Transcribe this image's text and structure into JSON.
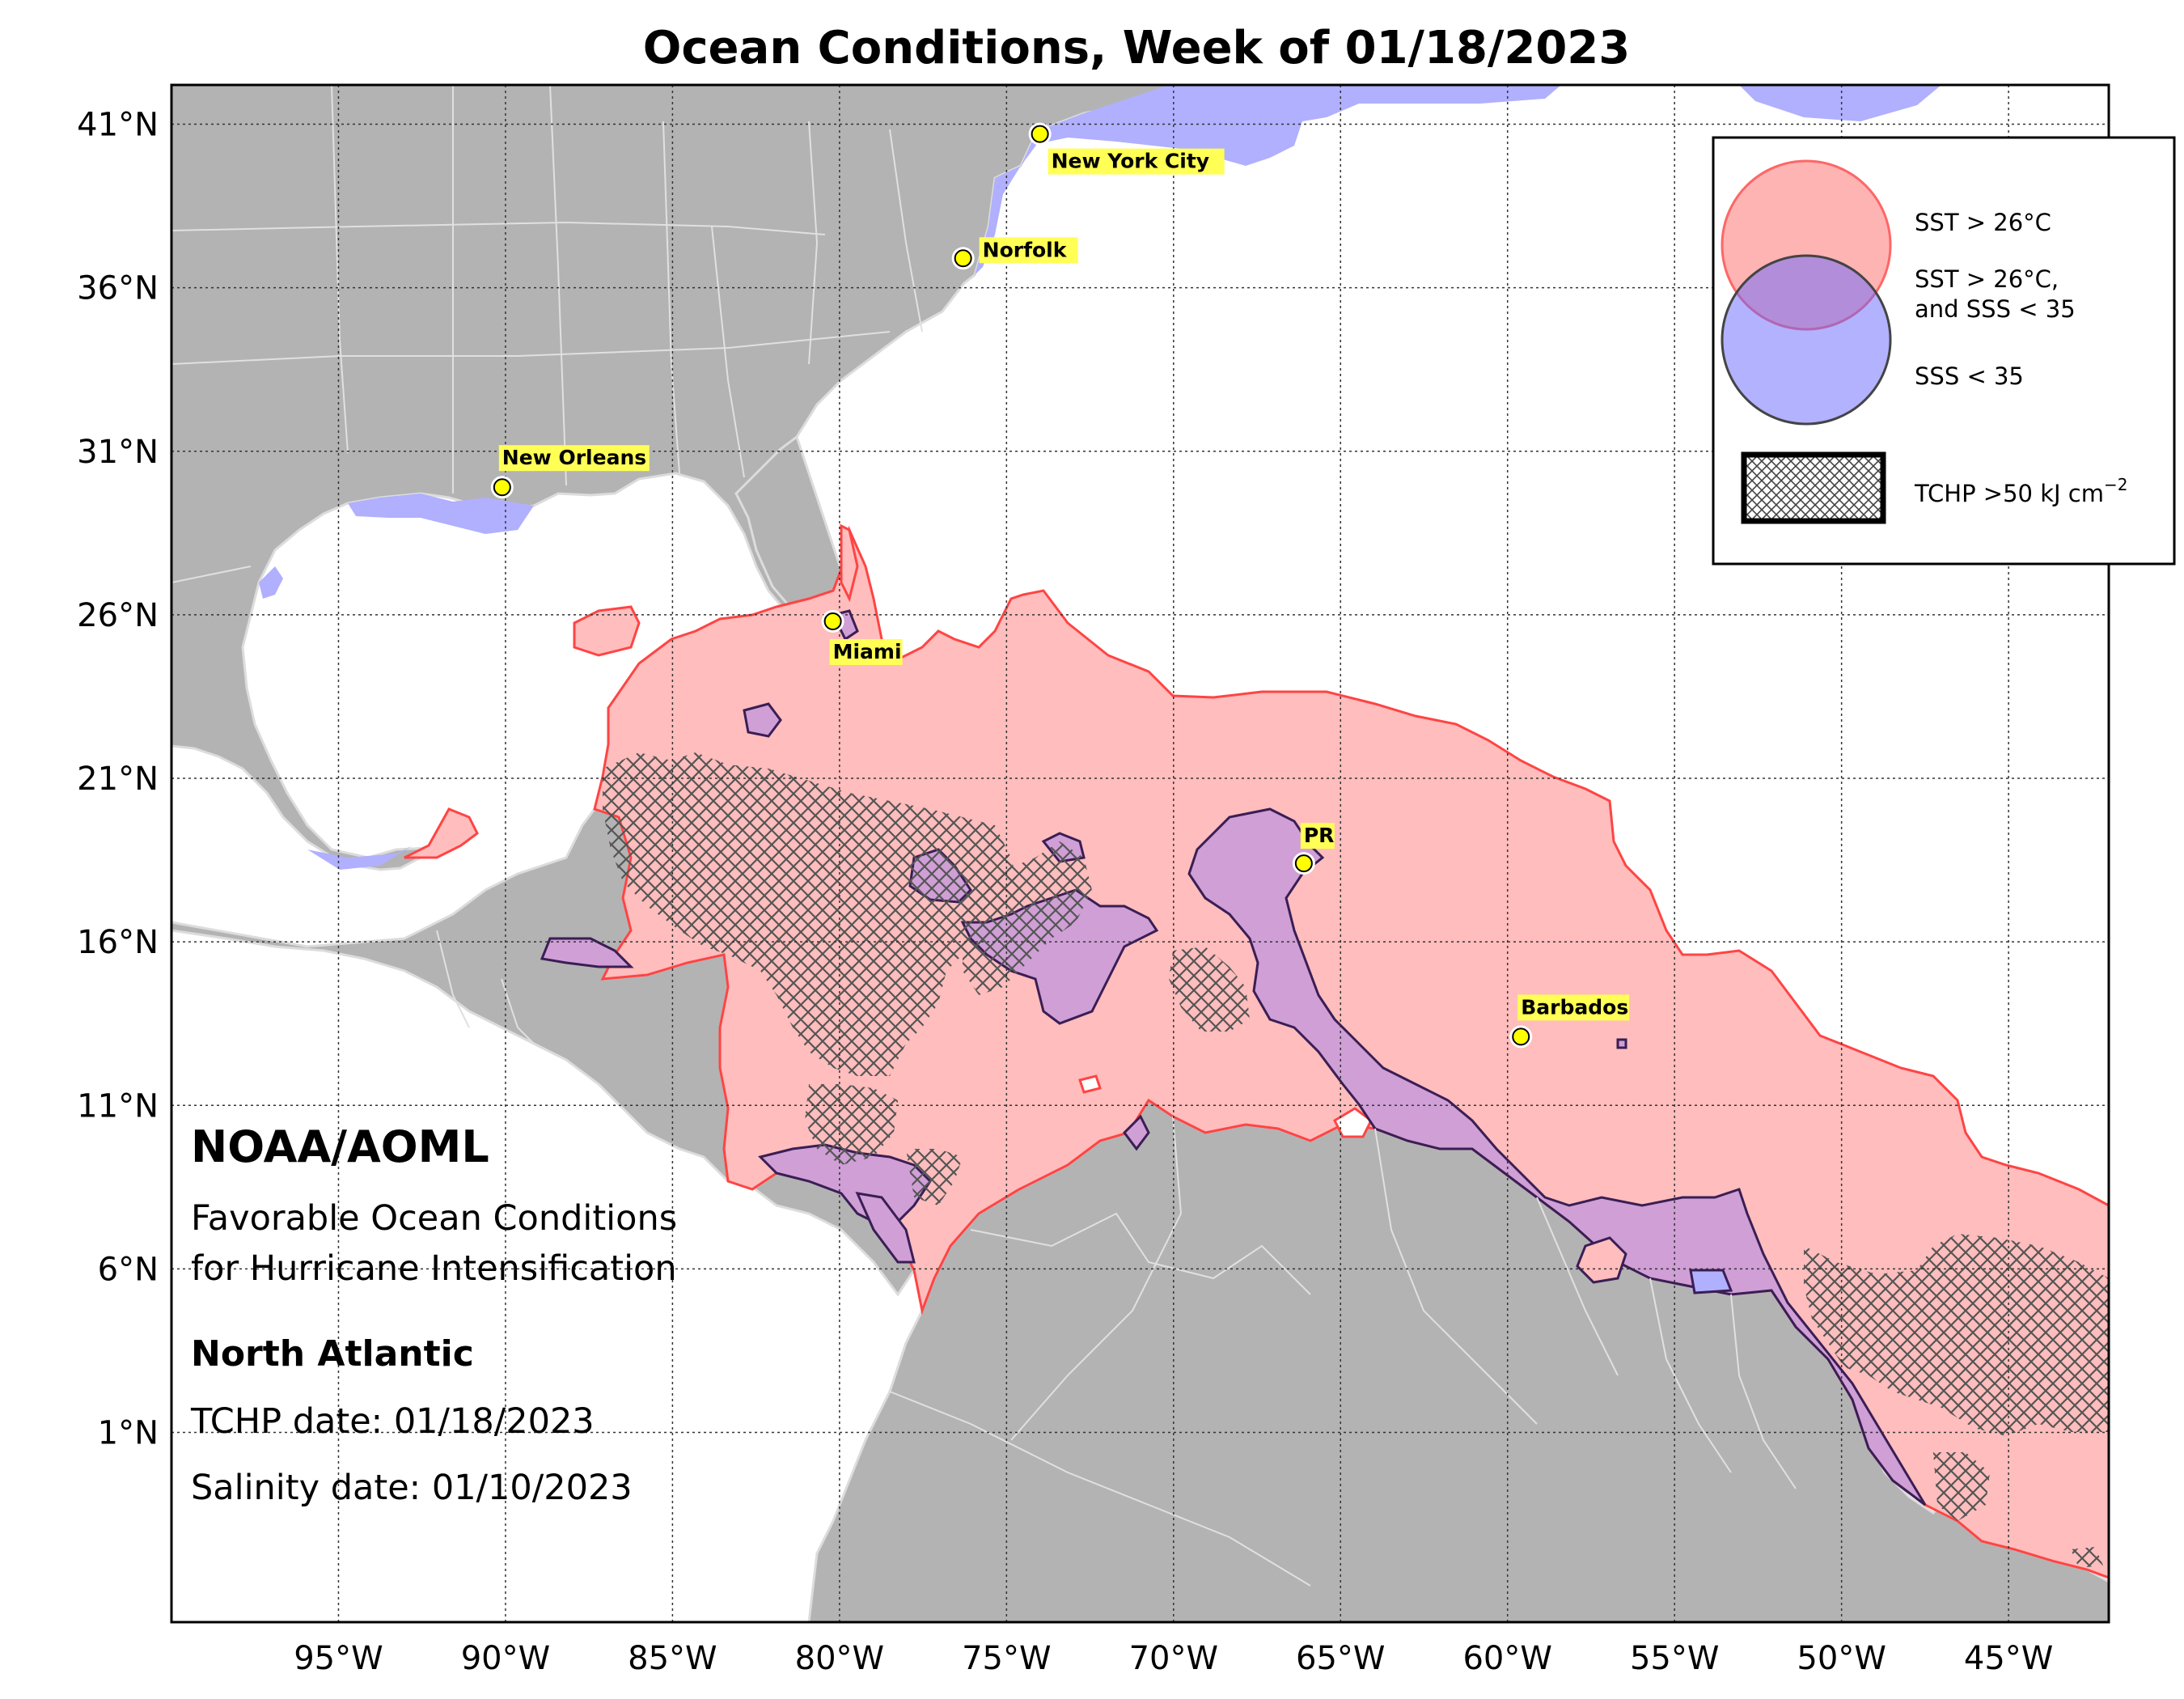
{
  "title": "Ocean Conditions, Week of 01/18/2023",
  "map": {
    "extent": {
      "lon_min": -100,
      "lon_max": -42,
      "lat_min": -4.8,
      "lat_max": 42.2
    },
    "lat_ticks": [
      {
        "value": 41,
        "label": "41°N"
      },
      {
        "value": 36,
        "label": "36°N"
      },
      {
        "value": 31,
        "label": "31°N"
      },
      {
        "value": 26,
        "label": "26°N"
      },
      {
        "value": 21,
        "label": "21°N"
      },
      {
        "value": 16,
        "label": "16°N"
      },
      {
        "value": 11,
        "label": "11°N"
      },
      {
        "value": 6,
        "label": "6°N"
      },
      {
        "value": 1,
        "label": "1°N"
      }
    ],
    "lon_ticks": [
      {
        "value": -95,
        "label": "95°W"
      },
      {
        "value": -90,
        "label": "90°W"
      },
      {
        "value": -85,
        "label": "85°W"
      },
      {
        "value": -80,
        "label": "80°W"
      },
      {
        "value": -75,
        "label": "75°W"
      },
      {
        "value": -70,
        "label": "70°W"
      },
      {
        "value": -65,
        "label": "65°W"
      },
      {
        "value": -60,
        "label": "60°W"
      },
      {
        "value": -55,
        "label": "55°W"
      },
      {
        "value": -50,
        "label": "50°W"
      },
      {
        "value": -45,
        "label": "45°W"
      }
    ]
  },
  "cities": [
    {
      "name": "New York City",
      "lon": -74.0,
      "lat": 40.7
    },
    {
      "name": "Norfolk",
      "lon": -76.3,
      "lat": 36.9
    },
    {
      "name": "New Orleans",
      "lon": -90.1,
      "lat": 29.9
    },
    {
      "name": "Miami",
      "lon": -80.2,
      "lat": 25.8
    },
    {
      "name": "PR",
      "lon": -66.1,
      "lat": 18.4
    },
    {
      "name": "Barbados",
      "lon": -59.6,
      "lat": 13.1
    }
  ],
  "legend": {
    "sst": "SST > 26°C",
    "both_line1": "SST > 26°C,",
    "both_line2": "and SSS < 35",
    "sss": "SSS < 35",
    "tchp": "TCHP >50 kJ cm",
    "tchp_sup": "−2"
  },
  "info": {
    "org": "NOAA/AOML",
    "line1": "Favorable Ocean Conditions",
    "line2": "for Hurricane Intensification",
    "region": "North Atlantic",
    "tchp_date": "TCHP date: 01/18/2023",
    "salinity_date": "Salinity date: 01/10/2023"
  },
  "colors": {
    "land": "#b3b3b3",
    "sst": "#ffbdbd",
    "sst_edge": "#ff4444",
    "sss": "#b0b0ff",
    "both": "#cf9fd6",
    "both_edge": "#3a1e55",
    "city_dot": "#ffff00",
    "city_label": "#ffff55"
  }
}
